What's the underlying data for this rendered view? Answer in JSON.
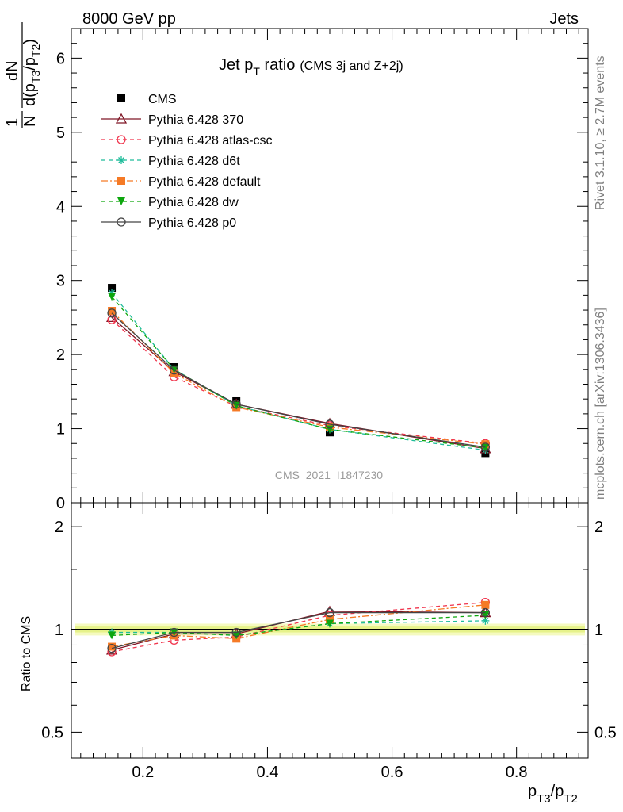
{
  "header": {
    "left": "8000 GeV pp",
    "right": "Jets"
  },
  "side_labels": {
    "rivet": "Rivet 3.1.10, ≥ 2.7M events",
    "mcplots": "mcplots.cern.ch [arXiv:1306.3436]"
  },
  "watermark": "CMS_2021_I1847230",
  "chart_data": [
    {
      "type": "line",
      "title": "Jet pT ratio (CMS 3j and Z+2j)",
      "title_parts": {
        "main": "Jet p",
        "sub": "T",
        "rest": " ratio",
        "note": "(CMS 3j and Z+2j)"
      },
      "ylabel": "1/N dN/d(pT3/pT2)",
      "ylabel_parts": {
        "one": "1",
        "N": "N",
        "dN": "dN",
        "d": "d(p",
        "s1": "T3",
        "mid": "/p",
        "s2": "T2",
        "close": ")"
      },
      "xlim": [
        0.085,
        0.915
      ],
      "ylim": [
        0,
        6.4
      ],
      "yticks": [
        0,
        1,
        2,
        3,
        4,
        5,
        6
      ],
      "ytick_labels": [
        "0",
        "1",
        "2",
        "3",
        "4",
        "5",
        "6"
      ],
      "legend": "top-left",
      "x": [
        0.15,
        0.25,
        0.35,
        0.5,
        0.75
      ],
      "series": [
        {
          "name": "CMS",
          "color": "#000000",
          "marker": "square",
          "line": "none",
          "values": [
            2.9,
            1.83,
            1.37,
            0.95,
            0.67
          ]
        },
        {
          "name": "Pythia 6.428 370",
          "color": "#7f1626",
          "marker": "triangle-open",
          "line": "solid",
          "values": [
            2.5,
            1.77,
            1.33,
            1.07,
            0.73
          ]
        },
        {
          "name": "Pythia 6.428 atlas-csc",
          "color": "#f0364e",
          "marker": "circle-open",
          "line": "dashed",
          "values": [
            2.47,
            1.7,
            1.3,
            1.04,
            0.8
          ]
        },
        {
          "name": "Pythia 6.428 d6t",
          "color": "#1ebc9a",
          "marker": "star",
          "line": "dashed",
          "values": [
            2.83,
            1.8,
            1.31,
            0.99,
            0.71
          ]
        },
        {
          "name": "Pythia 6.428 default",
          "color": "#f57a26",
          "marker": "square",
          "line": "dashdot",
          "values": [
            2.59,
            1.75,
            1.29,
            1.02,
            0.79
          ]
        },
        {
          "name": "Pythia 6.428 dw",
          "color": "#0ea60e",
          "marker": "triangle-down",
          "line": "dashed",
          "values": [
            2.78,
            1.8,
            1.31,
            0.99,
            0.74
          ]
        },
        {
          "name": "Pythia 6.428 p0",
          "color": "#444444",
          "marker": "circle-open",
          "line": "solid",
          "values": [
            2.56,
            1.79,
            1.33,
            1.06,
            0.75
          ]
        }
      ]
    },
    {
      "type": "line",
      "ylabel": "Ratio to CMS",
      "xlabel": "pT3/pT2",
      "xlabel_parts": {
        "p1": "p",
        "s1": "T3",
        "mid": "/p",
        "s2": "T2"
      },
      "xlim": [
        0.085,
        0.915
      ],
      "ylim": [
        0.42,
        2.35
      ],
      "yscale": "log",
      "yticks": [
        0.5,
        1,
        2
      ],
      "ytick_labels": [
        "0.5",
        "1",
        "2"
      ],
      "xticks": [
        0.2,
        0.4,
        0.6,
        0.8
      ],
      "xtick_labels": [
        "0.2",
        "0.4",
        "0.6",
        "0.8"
      ],
      "x": [
        0.15,
        0.25,
        0.35,
        0.5,
        0.75
      ],
      "band": {
        "inner": 0.02,
        "outer": 0.04,
        "inner_color": "#e6f28a",
        "outer_color": "#f5fac0"
      },
      "series": [
        {
          "name": "Pythia 6.428 370",
          "color": "#7f1626",
          "marker": "triangle-open",
          "line": "solid",
          "values": [
            0.87,
            0.97,
            0.97,
            1.13,
            1.12
          ]
        },
        {
          "name": "Pythia 6.428 atlas-csc",
          "color": "#f0364e",
          "marker": "circle-open",
          "line": "dashed",
          "values": [
            0.86,
            0.93,
            0.95,
            1.1,
            1.2
          ]
        },
        {
          "name": "Pythia 6.428 d6t",
          "color": "#1ebc9a",
          "marker": "star",
          "line": "dashed",
          "values": [
            0.98,
            0.98,
            0.96,
            1.04,
            1.06
          ]
        },
        {
          "name": "Pythia 6.428 default",
          "color": "#f57a26",
          "marker": "square",
          "line": "dashdot",
          "values": [
            0.89,
            0.96,
            0.94,
            1.07,
            1.18
          ]
        },
        {
          "name": "Pythia 6.428 dw",
          "color": "#0ea60e",
          "marker": "triangle-down",
          "line": "dashed",
          "values": [
            0.96,
            0.98,
            0.96,
            1.04,
            1.1
          ]
        },
        {
          "name": "Pythia 6.428 p0",
          "color": "#444444",
          "marker": "circle-open",
          "line": "solid",
          "values": [
            0.88,
            0.98,
            0.98,
            1.12,
            1.12
          ]
        }
      ]
    }
  ]
}
